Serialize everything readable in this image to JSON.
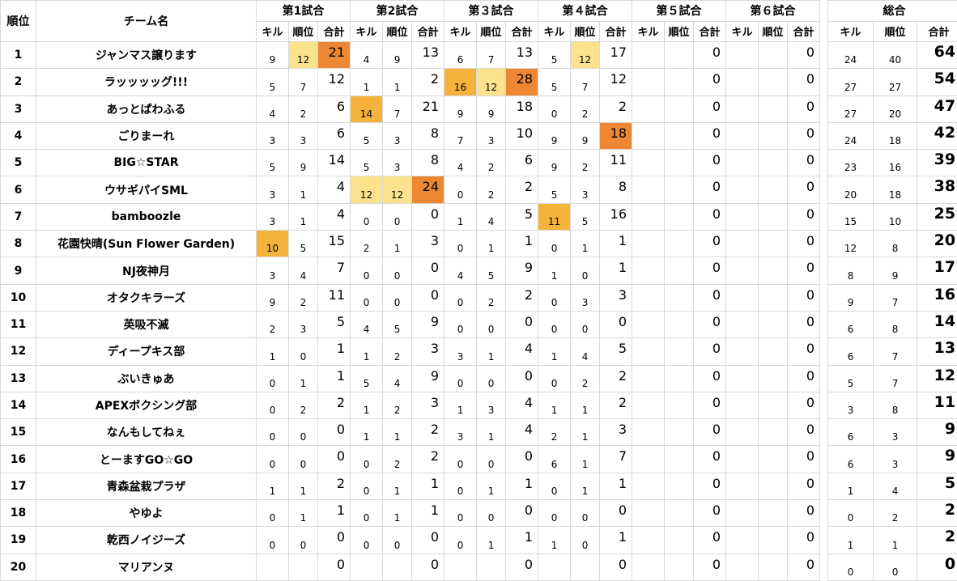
{
  "header": {
    "rank": "順位",
    "team": "チーム名",
    "matches": [
      "第1試合",
      "第2試合",
      "第３試合",
      "第４試合",
      "第５試合",
      "第６試合"
    ],
    "overall": "総合",
    "kill": "キル",
    "placement": "順位",
    "sum": "合計"
  },
  "colors": {
    "light_yellow": "#fce28c",
    "orange": "#f5b33b",
    "dark_orange": "#ee8734"
  },
  "rows": [
    {
      "rank": "1",
      "team": "ジャンマス譲ります",
      "m": [
        [
          "9",
          "12",
          "21"
        ],
        [
          "4",
          "9",
          "13"
        ],
        [
          "6",
          "7",
          "13"
        ],
        [
          "5",
          "12",
          "17"
        ],
        [
          "",
          "",
          "0"
        ],
        [
          "",
          "",
          "0"
        ]
      ],
      "tk": "24",
      "tp": "40",
      "total": "64",
      "hl": [
        [],
        [],
        [],
        [],
        [],
        []
      ]
    },
    {
      "rank": "2",
      "team": "ラッッッッグ!!!",
      "m": [
        [
          "5",
          "7",
          "12"
        ],
        [
          "1",
          "1",
          "2"
        ],
        [
          "16",
          "12",
          "28"
        ],
        [
          "5",
          "7",
          "12"
        ],
        [
          "",
          "",
          "0"
        ],
        [
          "",
          "",
          "0"
        ]
      ],
      "tk": "27",
      "tp": "27",
      "total": "54"
    },
    {
      "rank": "3",
      "team": "あっとぱわふる",
      "m": [
        [
          "4",
          "2",
          "6"
        ],
        [
          "14",
          "7",
          "21"
        ],
        [
          "9",
          "9",
          "18"
        ],
        [
          "0",
          "2",
          "2"
        ],
        [
          "",
          "",
          "0"
        ],
        [
          "",
          "",
          "0"
        ]
      ],
      "tk": "27",
      "tp": "20",
      "total": "47"
    },
    {
      "rank": "4",
      "team": "ごりまーれ",
      "m": [
        [
          "3",
          "3",
          "6"
        ],
        [
          "5",
          "3",
          "8"
        ],
        [
          "7",
          "3",
          "10"
        ],
        [
          "9",
          "9",
          "18"
        ],
        [
          "",
          "",
          "0"
        ],
        [
          "",
          "",
          "0"
        ]
      ],
      "tk": "24",
      "tp": "18",
      "total": "42"
    },
    {
      "rank": "5",
      "team": "BIG☆STAR",
      "m": [
        [
          "5",
          "9",
          "14"
        ],
        [
          "5",
          "3",
          "8"
        ],
        [
          "4",
          "2",
          "6"
        ],
        [
          "9",
          "2",
          "11"
        ],
        [
          "",
          "",
          "0"
        ],
        [
          "",
          "",
          "0"
        ]
      ],
      "tk": "23",
      "tp": "16",
      "total": "39"
    },
    {
      "rank": "6",
      "team": "ウサギパイSML",
      "m": [
        [
          "3",
          "1",
          "4"
        ],
        [
          "12",
          "12",
          "24"
        ],
        [
          "0",
          "2",
          "2"
        ],
        [
          "5",
          "3",
          "8"
        ],
        [
          "",
          "",
          "0"
        ],
        [
          "",
          "",
          "0"
        ]
      ],
      "tk": "20",
      "tp": "18",
      "total": "38"
    },
    {
      "rank": "7",
      "team": "bamboozle",
      "m": [
        [
          "3",
          "1",
          "4"
        ],
        [
          "0",
          "0",
          "0"
        ],
        [
          "1",
          "4",
          "5"
        ],
        [
          "11",
          "5",
          "16"
        ],
        [
          "",
          "",
          "0"
        ],
        [
          "",
          "",
          "0"
        ]
      ],
      "tk": "15",
      "tp": "10",
      "total": "25"
    },
    {
      "rank": "8",
      "team": "花園快晴(Sun Flower Garden)",
      "m": [
        [
          "10",
          "5",
          "15"
        ],
        [
          "2",
          "1",
          "3"
        ],
        [
          "0",
          "1",
          "1"
        ],
        [
          "0",
          "1",
          "1"
        ],
        [
          "",
          "",
          "0"
        ],
        [
          "",
          "",
          "0"
        ]
      ],
      "tk": "12",
      "tp": "8",
      "total": "20"
    },
    {
      "rank": "9",
      "team": "NJ夜神月",
      "m": [
        [
          "3",
          "4",
          "7"
        ],
        [
          "0",
          "0",
          "0"
        ],
        [
          "4",
          "5",
          "9"
        ],
        [
          "1",
          "0",
          "1"
        ],
        [
          "",
          "",
          "0"
        ],
        [
          "",
          "",
          "0"
        ]
      ],
      "tk": "8",
      "tp": "9",
      "total": "17"
    },
    {
      "rank": "10",
      "team": "オタクキラーズ",
      "m": [
        [
          "9",
          "2",
          "11"
        ],
        [
          "0",
          "0",
          "0"
        ],
        [
          "0",
          "2",
          "2"
        ],
        [
          "0",
          "3",
          "3"
        ],
        [
          "",
          "",
          "0"
        ],
        [
          "",
          "",
          "0"
        ]
      ],
      "tk": "9",
      "tp": "7",
      "total": "16"
    },
    {
      "rank": "11",
      "team": "英吸不滅",
      "m": [
        [
          "2",
          "3",
          "5"
        ],
        [
          "4",
          "5",
          "9"
        ],
        [
          "0",
          "0",
          "0"
        ],
        [
          "0",
          "0",
          "0"
        ],
        [
          "",
          "",
          "0"
        ],
        [
          "",
          "",
          "0"
        ]
      ],
      "tk": "6",
      "tp": "8",
      "total": "14"
    },
    {
      "rank": "12",
      "team": "ディープキス部",
      "m": [
        [
          "1",
          "0",
          "1"
        ],
        [
          "1",
          "2",
          "3"
        ],
        [
          "3",
          "1",
          "4"
        ],
        [
          "1",
          "4",
          "5"
        ],
        [
          "",
          "",
          "0"
        ],
        [
          "",
          "",
          "0"
        ]
      ],
      "tk": "6",
      "tp": "7",
      "total": "13"
    },
    {
      "rank": "13",
      "team": "ぶいきゅあ",
      "m": [
        [
          "0",
          "1",
          "1"
        ],
        [
          "5",
          "4",
          "9"
        ],
        [
          "0",
          "0",
          "0"
        ],
        [
          "0",
          "2",
          "2"
        ],
        [
          "",
          "",
          "0"
        ],
        [
          "",
          "",
          "0"
        ]
      ],
      "tk": "5",
      "tp": "7",
      "total": "12"
    },
    {
      "rank": "14",
      "team": "APEXボクシング部",
      "m": [
        [
          "0",
          "2",
          "2"
        ],
        [
          "1",
          "2",
          "3"
        ],
        [
          "1",
          "3",
          "4"
        ],
        [
          "1",
          "1",
          "2"
        ],
        [
          "",
          "",
          "0"
        ],
        [
          "",
          "",
          "0"
        ]
      ],
      "tk": "3",
      "tp": "8",
      "total": "11"
    },
    {
      "rank": "15",
      "team": "なんもしてねぇ",
      "m": [
        [
          "0",
          "0",
          "0"
        ],
        [
          "1",
          "1",
          "2"
        ],
        [
          "3",
          "1",
          "4"
        ],
        [
          "2",
          "1",
          "3"
        ],
        [
          "",
          "",
          "0"
        ],
        [
          "",
          "",
          "0"
        ]
      ],
      "tk": "6",
      "tp": "3",
      "total": "9"
    },
    {
      "rank": "16",
      "team": "とーますGO☆GO",
      "m": [
        [
          "0",
          "0",
          "0"
        ],
        [
          "0",
          "2",
          "2"
        ],
        [
          "0",
          "0",
          "0"
        ],
        [
          "6",
          "1",
          "7"
        ],
        [
          "",
          "",
          "0"
        ],
        [
          "",
          "",
          "0"
        ]
      ],
      "tk": "6",
      "tp": "3",
      "total": "9"
    },
    {
      "rank": "17",
      "team": "青森盆栽プラザ",
      "m": [
        [
          "1",
          "1",
          "2"
        ],
        [
          "0",
          "1",
          "1"
        ],
        [
          "0",
          "1",
          "1"
        ],
        [
          "0",
          "1",
          "1"
        ],
        [
          "",
          "",
          "0"
        ],
        [
          "",
          "",
          "0"
        ]
      ],
      "tk": "1",
      "tp": "4",
      "total": "5"
    },
    {
      "rank": "18",
      "team": "やゆよ",
      "m": [
        [
          "0",
          "1",
          "1"
        ],
        [
          "0",
          "1",
          "1"
        ],
        [
          "0",
          "0",
          "0"
        ],
        [
          "0",
          "0",
          "0"
        ],
        [
          "",
          "",
          "0"
        ],
        [
          "",
          "",
          "0"
        ]
      ],
      "tk": "0",
      "tp": "2",
      "total": "2"
    },
    {
      "rank": "19",
      "team": "乾西ノイジーズ",
      "m": [
        [
          "0",
          "0",
          "0"
        ],
        [
          "0",
          "0",
          "0"
        ],
        [
          "0",
          "1",
          "1"
        ],
        [
          "1",
          "0",
          "1"
        ],
        [
          "",
          "",
          "0"
        ],
        [
          "",
          "",
          "0"
        ]
      ],
      "tk": "1",
      "tp": "1",
      "total": "2"
    },
    {
      "rank": "20",
      "team": "マリアンヌ",
      "m": [
        [
          "",
          "",
          "0"
        ],
        [
          "",
          "",
          "0"
        ],
        [
          "",
          "",
          "0"
        ],
        [
          "",
          "",
          "0"
        ],
        [
          "",
          "",
          "0"
        ],
        [
          "",
          "",
          "0"
        ]
      ],
      "tk": "0",
      "tp": "0",
      "total": "0"
    }
  ]
}
